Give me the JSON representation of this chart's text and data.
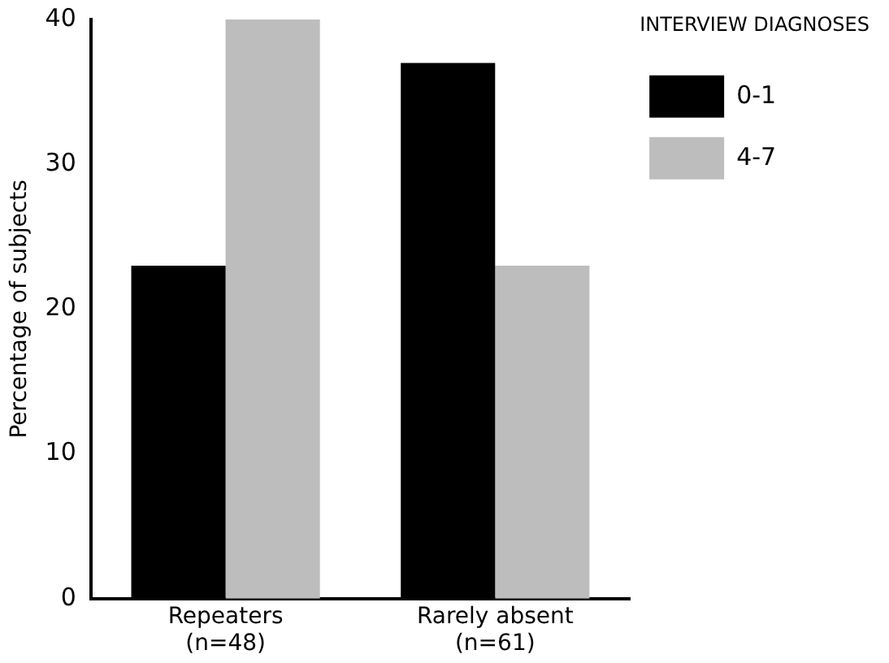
{
  "chart_data": {
    "type": "bar",
    "ylabel": "Percentage of subjects",
    "legend_title": "INTERVIEW DIAGNOSES",
    "categories": [
      "Repeaters\n(n=48)",
      "Rarely absent\n(n=61)"
    ],
    "series": [
      {
        "name": "0-1",
        "color": "#000000",
        "values": [
          23,
          37
        ]
      },
      {
        "name": "4-7",
        "color": "#bdbdbd",
        "values": [
          40,
          23
        ]
      }
    ],
    "ylim": [
      0,
      40
    ],
    "yticks": [
      0,
      10,
      20,
      30,
      40
    ],
    "grid": false,
    "legend": "top right"
  }
}
